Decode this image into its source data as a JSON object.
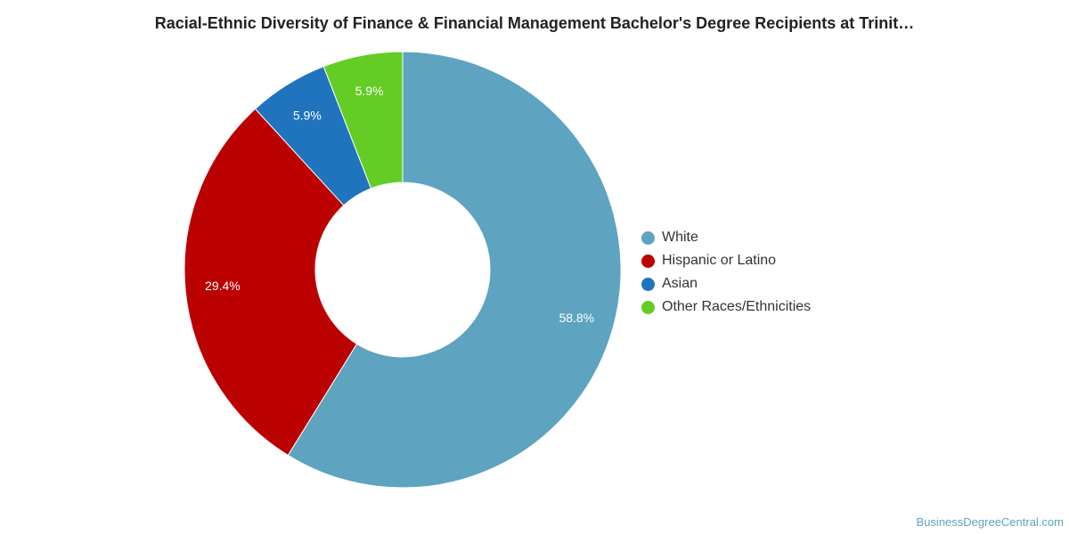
{
  "chart_data": {
    "type": "pie",
    "title": "Racial-Ethnic Diversity of Finance & Financial Management Bachelor's Degree Recipients at Trinit…",
    "categories": [
      "White",
      "Hispanic or Latino",
      "Asian",
      "Other Races/Ethnicities"
    ],
    "values": [
      58.8,
      29.4,
      5.9,
      5.9
    ],
    "labels": [
      "58.8%",
      "29.4%",
      "5.9%",
      "5.9%"
    ],
    "colors": [
      "#5ea3c0",
      "#bb0000",
      "#1f74bd",
      "#63cd25"
    ],
    "legend_position": "right",
    "donut": true
  },
  "watermark": "BusinessDegreeCentral.com"
}
